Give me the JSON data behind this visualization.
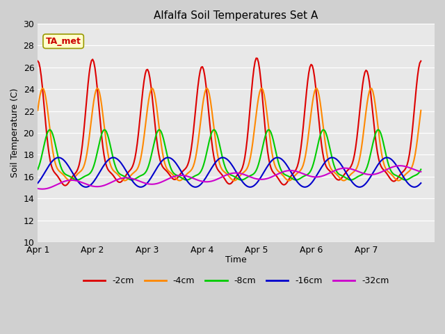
{
  "title": "Alfalfa Soil Temperatures Set A",
  "xlabel": "Time",
  "ylabel": "Soil Temperature (C)",
  "ylim": [
    10,
    30
  ],
  "background_color": "#e8e8e8",
  "grid_color": "#ffffff",
  "annotation_label": "TA_met",
  "annotation_color": "#cc0000",
  "annotation_bg": "#ffffcc",
  "annotation_border": "#999900",
  "series_order": [
    "-2cm",
    "-4cm",
    "-8cm",
    "-16cm",
    "-32cm"
  ],
  "series": {
    "-2cm": {
      "color": "#dd0000",
      "linewidth": 1.5
    },
    "-4cm": {
      "color": "#ff8800",
      "linewidth": 1.5
    },
    "-8cm": {
      "color": "#00cc00",
      "linewidth": 1.5
    },
    "-16cm": {
      "color": "#0000cc",
      "linewidth": 1.5
    },
    "-32cm": {
      "color": "#cc00cc",
      "linewidth": 1.5
    }
  },
  "xtick_labels": [
    "Apr 1",
    "Apr 2",
    "Apr 3",
    "Apr 4",
    "Apr 5",
    "Apr 6",
    "Apr 7"
  ],
  "xtick_positions": [
    0,
    1,
    2,
    3,
    4,
    5,
    6
  ],
  "ytick_positions": [
    10,
    12,
    14,
    16,
    18,
    20,
    22,
    24,
    26,
    28,
    30
  ]
}
